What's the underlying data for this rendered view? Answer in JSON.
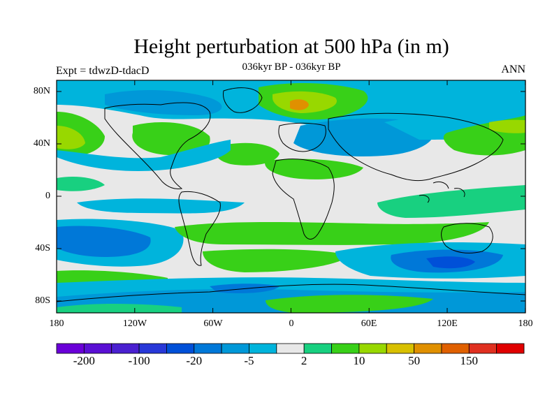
{
  "title": "Height perturbation at 500 hPa (in m)",
  "subtitle": "036kyr BP - 036kyr BP",
  "left_label": "Expt = tdwzD-tdacD",
  "right_label": "ANN",
  "lat_ticks": [
    "80N",
    "40N",
    "0",
    "40S",
    "80S"
  ],
  "lon_ticks": [
    "180",
    "120W",
    "60W",
    "0",
    "60E",
    "120E",
    "180"
  ],
  "colorbar": {
    "colors": [
      "#6a00d8",
      "#5a10d4",
      "#4a20d0",
      "#2838d8",
      "#0050d8",
      "#0078d8",
      "#0098d8",
      "#00b4dc",
      "#e8e8e8",
      "#18d080",
      "#38d018",
      "#98d800",
      "#d8c000",
      "#e09000",
      "#e06000",
      "#e03020",
      "#e00000"
    ],
    "labels": [
      "-200",
      "-100",
      "-20",
      "-5",
      "2",
      "10",
      "50",
      "150"
    ]
  }
}
